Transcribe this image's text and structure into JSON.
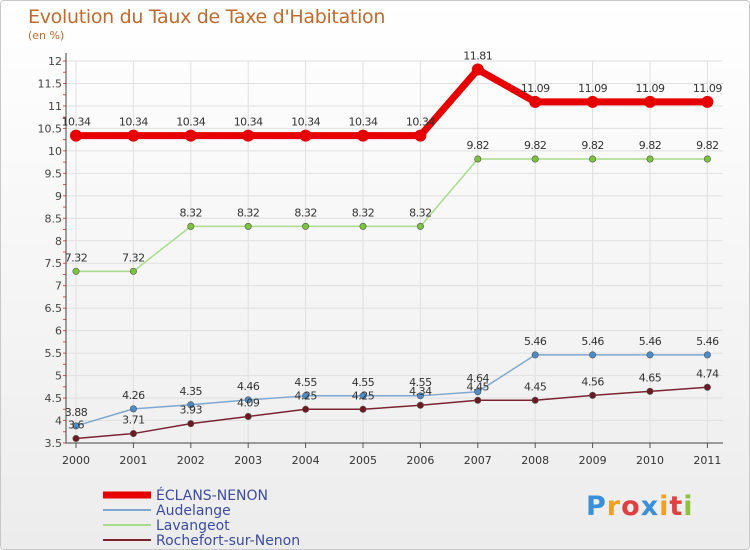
{
  "title": "Evolution du Taux de Taxe d'Habitation",
  "subtitle": "(en %)",
  "logo_text": "Proxiti",
  "chart_data": {
    "type": "line",
    "title": "Evolution du Taux de Taxe d'Habitation",
    "ylabel": "(en %)",
    "xlabel": "",
    "ylim": [
      3.5,
      12
    ],
    "yticks": [
      3.5,
      4,
      4.5,
      5,
      5.5,
      6,
      6.5,
      7,
      7.5,
      8,
      8.5,
      9,
      9.5,
      10,
      10.5,
      11,
      11.5,
      12
    ],
    "x": [
      "2000",
      "2001",
      "2002",
      "2003",
      "2004",
      "2005",
      "2006",
      "2007",
      "2008",
      "2009",
      "2010",
      "2011"
    ],
    "series": [
      {
        "name": "Rochefort-sur-Nenon",
        "color": "#7a2430",
        "marker": "#6b1a22",
        "values": [
          3.6,
          3.71,
          3.93,
          4.09,
          4.25,
          4.25,
          4.34,
          4.45,
          4.45,
          4.56,
          4.65,
          4.74
        ],
        "labels": [
          "3.6",
          "3.71",
          "3.93",
          "4.09",
          "4.25",
          "4.25",
          "4.34",
          "4.45",
          "4.45",
          "4.56",
          "4.65",
          "4.74"
        ]
      },
      {
        "name": "Lavangeot",
        "color": "#a8dc8a",
        "marker": "#7cc43c",
        "values": [
          7.32,
          7.32,
          8.32,
          8.32,
          8.32,
          8.32,
          8.32,
          9.82,
          9.82,
          9.82,
          9.82,
          9.82
        ],
        "labels": [
          "7.32",
          "7.32",
          "8.32",
          "8.32",
          "8.32",
          "8.32",
          "8.32",
          "9.82",
          "9.82",
          "9.82",
          "9.82",
          "9.82"
        ]
      },
      {
        "name": "Audelange",
        "color": "#7ea8d0",
        "marker": "#4c8cc8",
        "values": [
          3.88,
          4.26,
          4.35,
          4.46,
          4.55,
          4.55,
          4.55,
          4.64,
          5.46,
          5.46,
          5.46,
          5.46
        ],
        "labels": [
          "3.88",
          "4.26",
          "4.35",
          "4.46",
          "4.55",
          "4.55",
          "4.55",
          "4.64",
          "5.46",
          "5.46",
          "5.46",
          "5.46"
        ]
      },
      {
        "name": "ÉCLANS-NENON",
        "color": "#e60000",
        "marker": "#e60000",
        "values": [
          10.34,
          10.34,
          10.34,
          10.34,
          10.34,
          10.34,
          10.34,
          11.81,
          11.09,
          11.09,
          11.09,
          11.09
        ],
        "labels": [
          "10.34",
          "10.34",
          "10.34",
          "10.34",
          "10.34",
          "10.34",
          "10.34",
          "11.81",
          "11.09",
          "11.09",
          "11.09",
          "11.09"
        ]
      }
    ],
    "legend_order": [
      "ÉCLANS-NENON",
      "Audelange",
      "Lavangeot",
      "Rochefort-sur-Nenon"
    ],
    "legend_position": "bottom-left",
    "grid": true
  }
}
